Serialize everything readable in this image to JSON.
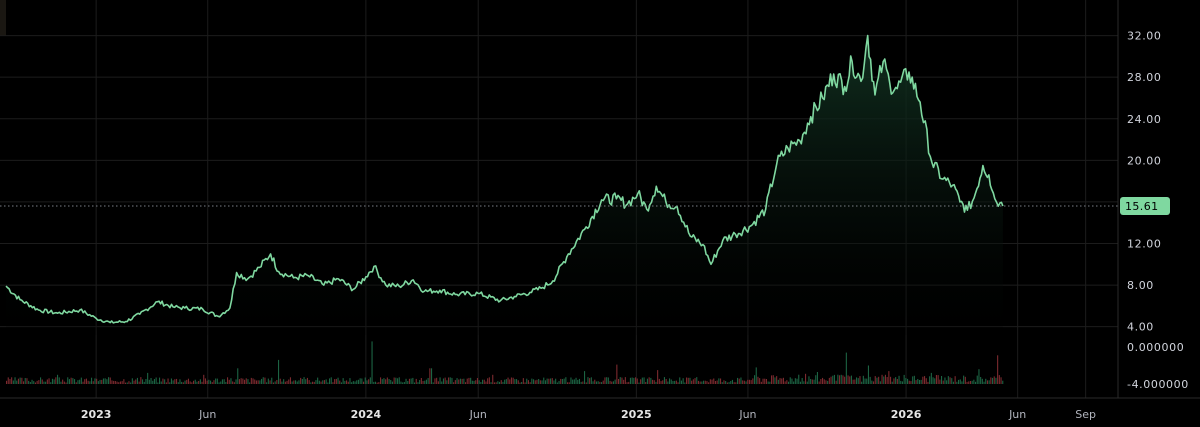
{
  "colors": {
    "background": "#000000",
    "grid": "#1c1c1c",
    "line": "#7fd8a0",
    "area_top": "#123322",
    "price_label_bg": "#7fd8a0",
    "vol_up": "#1f6e4a",
    "vol_down": "#8a2f34",
    "axis_text": "#d1d4dc",
    "crosshair": "#7b7f87"
  },
  "chart_data": {
    "type": "line",
    "title": "",
    "xlabel": "",
    "ylabel": "",
    "x_axis": {
      "range": [
        "2022-09-01",
        "2026-10-08"
      ],
      "tick_labels": [
        {
          "date": "2023-01-01",
          "label": "2023",
          "major": true
        },
        {
          "date": "2023-06-01",
          "label": "Jun",
          "major": false
        },
        {
          "date": "2024-01-01",
          "label": "2024",
          "major": true
        },
        {
          "date": "2024-06-01",
          "label": "Jun",
          "major": false
        },
        {
          "date": "2025-01-01",
          "label": "2025",
          "major": true
        },
        {
          "date": "2025-06-01",
          "label": "Jun",
          "major": false
        },
        {
          "date": "2026-01-01",
          "label": "2026",
          "major": true
        },
        {
          "date": "2026-06-01",
          "label": "Jun",
          "major": false
        },
        {
          "date": "2026-09-01",
          "label": "Sep",
          "major": false
        }
      ]
    },
    "price_axis": {
      "ylim": [
        3.2,
        33.5
      ],
      "tick_labels": [
        {
          "value": 32,
          "label": "32.00"
        },
        {
          "value": 28,
          "label": "28.00"
        },
        {
          "value": 24,
          "label": "24.00"
        },
        {
          "value": 20,
          "label": "20.00"
        },
        {
          "value": 16,
          "label": "16.00"
        },
        {
          "value": 12,
          "label": "12.00"
        },
        {
          "value": 8,
          "label": "8.00"
        },
        {
          "value": 4,
          "label": "4.00"
        }
      ]
    },
    "volume_axis": {
      "tick_labels": [
        {
          "value": 0,
          "label": "0.000000"
        },
        {
          "value": -4,
          "label": "-4.000000"
        }
      ]
    },
    "last_price": {
      "value": 15.61,
      "label": "15.61"
    },
    "series": [
      {
        "values": [
          [
            "2022-09-01",
            7.9
          ],
          [
            "2022-09-20",
            6.6
          ],
          [
            "2022-10-15",
            5.6
          ],
          [
            "2022-11-10",
            5.3
          ],
          [
            "2022-12-10",
            5.6
          ],
          [
            "2023-01-01",
            4.8
          ],
          [
            "2023-01-20",
            4.4
          ],
          [
            "2023-02-10",
            4.5
          ],
          [
            "2023-03-01",
            5.2
          ],
          [
            "2023-03-25",
            6.4
          ],
          [
            "2023-04-15",
            5.9
          ],
          [
            "2023-05-01",
            5.8
          ],
          [
            "2023-05-25",
            5.7
          ],
          [
            "2023-06-15",
            5.0
          ],
          [
            "2023-07-01",
            5.8
          ],
          [
            "2023-07-10",
            9.2
          ],
          [
            "2023-07-25",
            8.6
          ],
          [
            "2023-08-10",
            9.7
          ],
          [
            "2023-08-25",
            11.0
          ],
          [
            "2023-09-05",
            9.3
          ],
          [
            "2023-09-25",
            8.7
          ],
          [
            "2023-10-15",
            8.9
          ],
          [
            "2023-11-05",
            8.0
          ],
          [
            "2023-11-25",
            8.6
          ],
          [
            "2023-12-15",
            7.6
          ],
          [
            "2024-01-01",
            8.8
          ],
          [
            "2024-01-12",
            9.8
          ],
          [
            "2024-01-28",
            8.0
          ],
          [
            "2024-02-15",
            7.9
          ],
          [
            "2024-03-05",
            8.5
          ],
          [
            "2024-03-20",
            7.4
          ],
          [
            "2024-04-10",
            7.5
          ],
          [
            "2024-05-01",
            7.1
          ],
          [
            "2024-06-01",
            7.2
          ],
          [
            "2024-07-01",
            6.5
          ],
          [
            "2024-07-20",
            6.9
          ],
          [
            "2024-08-10",
            7.3
          ],
          [
            "2024-08-25",
            7.7
          ],
          [
            "2024-09-10",
            8.4
          ],
          [
            "2024-10-01",
            11.0
          ],
          [
            "2024-10-25",
            13.6
          ],
          [
            "2024-11-15",
            16.2
          ],
          [
            "2024-12-05",
            16.3
          ],
          [
            "2024-12-20",
            15.8
          ],
          [
            "2025-01-03",
            16.8
          ],
          [
            "2025-01-15",
            15.3
          ],
          [
            "2025-01-28",
            17.5
          ],
          [
            "2025-02-10",
            16.0
          ],
          [
            "2025-02-25",
            15.6
          ],
          [
            "2025-03-15",
            12.7
          ],
          [
            "2025-04-01",
            11.9
          ],
          [
            "2025-04-12",
            10.0
          ],
          [
            "2025-04-28",
            12.3
          ],
          [
            "2025-05-15",
            12.9
          ],
          [
            "2025-06-05",
            13.7
          ],
          [
            "2025-06-25",
            15.3
          ],
          [
            "2025-07-10",
            19.7
          ],
          [
            "2025-07-25",
            21.2
          ],
          [
            "2025-08-10",
            21.9
          ],
          [
            "2025-08-25",
            24.2
          ],
          [
            "2025-09-10",
            26.0
          ],
          [
            "2025-09-25",
            28.3
          ],
          [
            "2025-10-10",
            27.1
          ],
          [
            "2025-10-20",
            29.5
          ],
          [
            "2025-11-01",
            27.6
          ],
          [
            "2025-11-10",
            32.0
          ],
          [
            "2025-11-20",
            26.3
          ],
          [
            "2025-12-01",
            29.5
          ],
          [
            "2025-12-10",
            27.4
          ],
          [
            "2025-12-20",
            26.9
          ],
          [
            "2026-01-05",
            28.5
          ],
          [
            "2026-01-20",
            25.6
          ],
          [
            "2026-02-05",
            19.8
          ],
          [
            "2026-02-20",
            18.2
          ],
          [
            "2026-03-05",
            17.6
          ],
          [
            "2026-03-15",
            16.0
          ],
          [
            "2026-03-25",
            15.2
          ],
          [
            "2026-04-03",
            16.4
          ],
          [
            "2026-04-15",
            19.5
          ],
          [
            "2026-04-23",
            18.6
          ],
          [
            "2026-05-01",
            16.3
          ],
          [
            "2026-05-08",
            15.9
          ],
          [
            "2026-05-12",
            15.61
          ]
        ]
      }
    ],
    "volume": {
      "range": [
        "2022-09-01",
        "2026-05-12"
      ],
      "baseline": -4.0,
      "typical_height": 0.5,
      "spikes": [
        [
          "2022-11-08",
          1.0
        ],
        [
          "2023-03-10",
          1.2
        ],
        [
          "2023-05-25",
          1.0
        ],
        [
          "2023-07-10",
          1.7
        ],
        [
          "2023-09-05",
          2.6
        ],
        [
          "2024-01-08",
          4.6
        ],
        [
          "2024-03-28",
          1.7
        ],
        [
          "2024-06-20",
          1.0
        ],
        [
          "2024-10-22",
          1.4
        ],
        [
          "2024-12-05",
          2.1
        ],
        [
          "2025-01-28",
          1.5
        ],
        [
          "2025-06-12",
          1.8
        ],
        [
          "2025-08-18",
          1.1
        ],
        [
          "2025-09-02",
          1.3
        ],
        [
          "2025-10-12",
          3.4
        ],
        [
          "2025-11-10",
          2.0
        ],
        [
          "2025-12-08",
          1.4
        ],
        [
          "2026-02-04",
          1.2
        ],
        [
          "2026-04-08",
          1.6
        ],
        [
          "2026-05-05",
          3.1
        ]
      ]
    }
  }
}
